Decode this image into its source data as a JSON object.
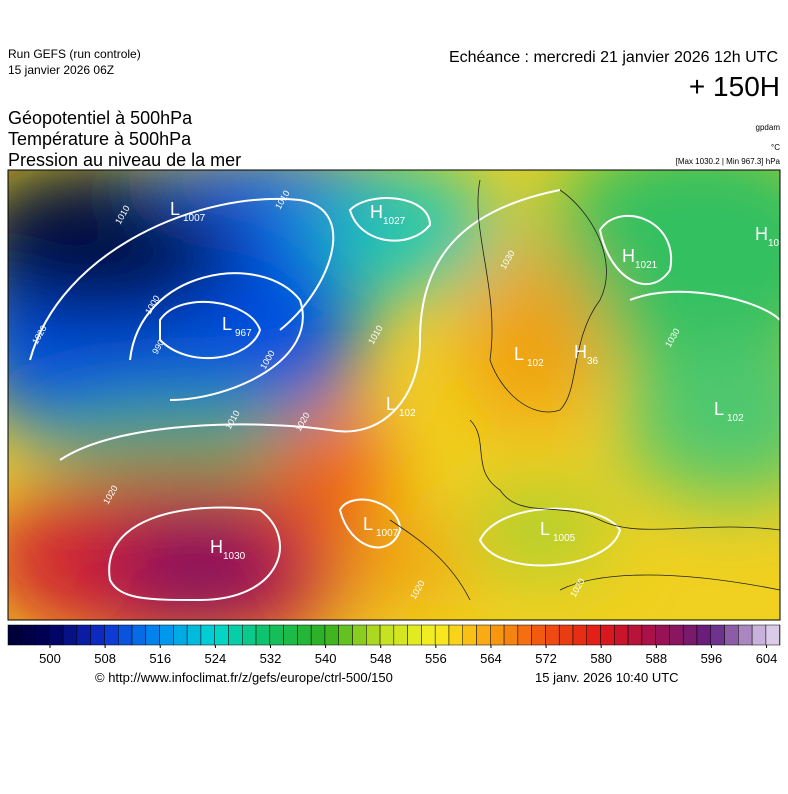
{
  "header": {
    "run": "Run GEFS (run controle)",
    "run_date": "15 janvier 2026 06Z",
    "valid": "Echéance : mercredi 21 janvier 2026 12h UTC",
    "lead": "+ 150H"
  },
  "titles": [
    "Géopotentiel à 500hPa",
    "Température à 500hPa",
    "Pression au niveau de la mer"
  ],
  "units": {
    "geopotential": "gpdam",
    "temperature": "°C",
    "pressure": "[Max 1030.2 | Min 967.3] hPa"
  },
  "pressure_centers": [
    {
      "type": "L",
      "value": "1007"
    },
    {
      "type": "H",
      "value": "1027"
    },
    {
      "type": "L",
      "value": "967"
    },
    {
      "type": "H",
      "value": "1021"
    },
    {
      "type": "H",
      "value": "10"
    },
    {
      "type": "L",
      "value": "102"
    },
    {
      "type": "H",
      "value": "36"
    },
    {
      "type": "L",
      "value": "102"
    },
    {
      "type": "L",
      "value": "102"
    },
    {
      "type": "L",
      "value": "1007"
    },
    {
      "type": "L",
      "value": "1005"
    },
    {
      "type": "H",
      "value": "1030"
    }
  ],
  "contour_labels": [
    "1010",
    "1010",
    "1000",
    "990",
    "1020",
    "1020",
    "1000",
    "1010",
    "1020",
    "1020",
    "1030",
    "1020",
    "1010",
    "1030"
  ],
  "colorbar": {
    "ticks": [
      500,
      508,
      516,
      524,
      532,
      540,
      548,
      556,
      564,
      572,
      580,
      588,
      596,
      604
    ]
  },
  "footer": {
    "source": "© http://www.infoclimat.fr/z/gefs/europe/ctrl-500/150",
    "generated": "15 janv. 2026 10:40 UTC"
  }
}
